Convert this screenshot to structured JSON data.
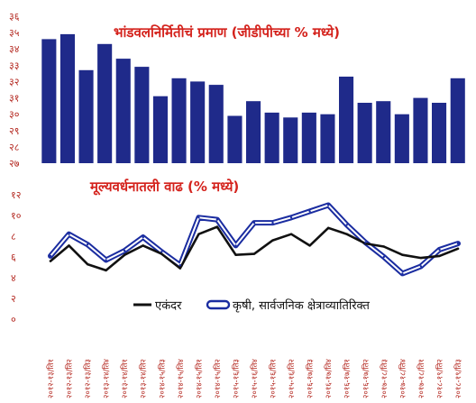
{
  "chart_data": [
    {
      "type": "bar",
      "title": "भांडवलनिर्मितीचं प्रमाण (जीडीपीच्या % मध्ये)",
      "ylim": [
        27,
        36
      ],
      "y_ticks": [
        "३६",
        "३५",
        "३४",
        "३३",
        "३२",
        "३१",
        "३०",
        "२९",
        "२८",
        "२७"
      ],
      "y_tick_values": [
        36,
        35,
        34,
        33,
        32,
        31,
        30,
        29,
        28,
        27
      ],
      "bar_color": "#1f2a8a",
      "values": [
        34.6,
        34.9,
        32.7,
        34.3,
        33.4,
        32.9,
        31.1,
        32.2,
        32.0,
        31.8,
        29.9,
        30.8,
        30.1,
        29.8,
        30.1,
        30.0,
        32.3,
        30.7,
        30.8,
        30.0,
        31.0,
        30.7,
        32.2
      ]
    },
    {
      "type": "line",
      "title": "मूल्यवर्धनातली वाढ (% मध्ये)",
      "ylim": [
        0,
        12
      ],
      "y_ticks": [
        "१२",
        "१०",
        "८",
        "६",
        "४",
        "२",
        "०"
      ],
      "y_tick_values": [
        12,
        10,
        8,
        6,
        4,
        2,
        0
      ],
      "categories": [
        "२०१२-१३/ति१",
        "२०१२-१३/ति२",
        "२०१२-१३/ति३",
        "२०१३-१४/ति४",
        "२०१३-१४/ति१",
        "२०१३-१४/ति२",
        "२०१४-१५/ति३",
        "२०१४-१५/ति४",
        "२०१४-१५/ति१",
        "२०१४-१५/ति२",
        "२०१५-१६/ति३",
        "२०१५-१६/ति४",
        "२०१५-१६/ति१",
        "२०१५-१६/ति२",
        "२०१६-१७/ति३",
        "२०१६-१७/ति४",
        "२०१६-१७/ति१",
        "२०१६-१७/ति२",
        "२०१७-१८/ति३",
        "२०१७-१८/ति४",
        "२०१७-१८/ति१",
        "२०१८-१९/ति२",
        "२०१८-१९/ति३"
      ],
      "series": [
        {
          "name": "एकंदर",
          "style": "black",
          "values": [
            5.6,
            7.1,
            5.3,
            4.7,
            6.2,
            7.1,
            6.3,
            4.9,
            8.2,
            8.9,
            6.2,
            6.3,
            7.6,
            8.2,
            7.1,
            8.8,
            8.2,
            7.3,
            7.0,
            6.2,
            5.9,
            6.1,
            6.8
          ]
        },
        {
          "name": "कृषी, सार्वजनिक क्षेत्राव्यातिरिक्त",
          "style": "double-blue",
          "values": [
            6.1,
            8.2,
            7.2,
            5.7,
            6.6,
            7.9,
            6.5,
            5.2,
            9.8,
            9.6,
            7.1,
            9.3,
            9.3,
            9.8,
            10.4,
            11.0,
            9.1,
            7.4,
            6.0,
            4.4,
            5.1,
            6.7,
            7.3
          ]
        }
      ],
      "legend_placement": "bottom-center"
    }
  ],
  "colors": {
    "title_red": "#d4221c",
    "axis_red": "#b3261e",
    "bar_navy": "#1f2a8a",
    "line_blue": "#1a2ca0",
    "line_black": "#111111"
  }
}
